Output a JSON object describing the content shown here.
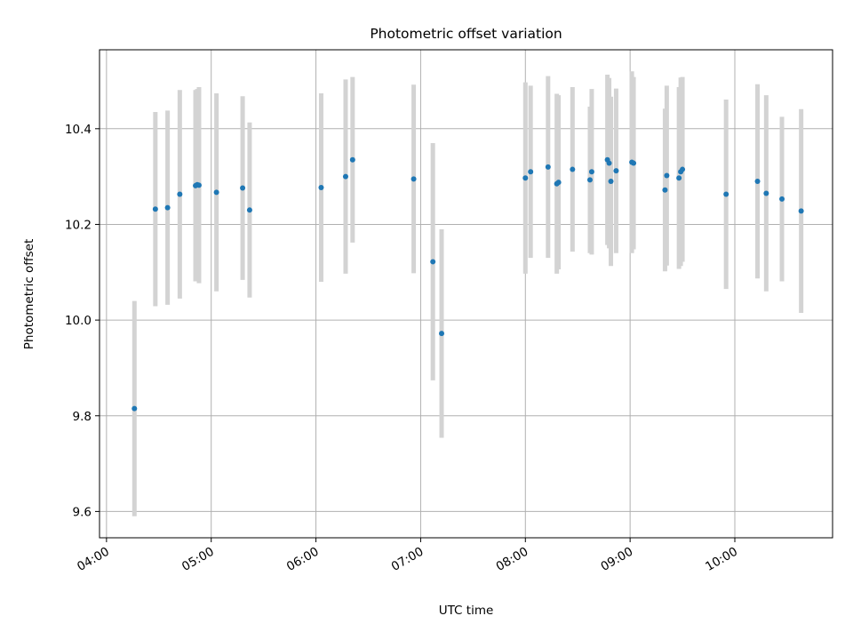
{
  "chart_data": {
    "type": "scatter",
    "title": "Photometric offset variation",
    "xlabel": "UTC time",
    "ylabel": "Photometric offset",
    "x_unit": "UTC time (HH:MM)",
    "xlim": [
      "03:56",
      "10:56"
    ],
    "ylim": [
      9.545,
      10.565
    ],
    "x_ticks": [
      "04:00",
      "05:00",
      "06:00",
      "07:00",
      "08:00",
      "09:00",
      "10:00"
    ],
    "y_ticks": [
      9.6,
      9.8,
      10.0,
      10.2,
      10.4
    ],
    "y_tick_labels": [
      "9.6",
      "9.8",
      "10.0",
      "10.2",
      "10.4"
    ],
    "grid": true,
    "point_color": "#1f77b4",
    "errorbar_color": "#d3d3d3",
    "series": [
      {
        "points": [
          {
            "x": "04:16",
            "y": 9.815,
            "yerr": 0.225
          },
          {
            "x": "04:28",
            "y": 10.232,
            "yerr": 0.203
          },
          {
            "x": "04:35",
            "y": 10.235,
            "yerr": 0.203
          },
          {
            "x": "04:42",
            "y": 10.263,
            "yerr": 0.218
          },
          {
            "x": "04:51",
            "y": 10.281,
            "yerr": 0.2
          },
          {
            "x": "04:52",
            "y": 10.283,
            "yerr": 0.2
          },
          {
            "x": "04:53",
            "y": 10.282,
            "yerr": 0.205
          },
          {
            "x": "05:03",
            "y": 10.267,
            "yerr": 0.207
          },
          {
            "x": "05:18",
            "y": 10.276,
            "yerr": 0.192
          },
          {
            "x": "05:22",
            "y": 10.23,
            "yerr": 0.183
          },
          {
            "x": "06:03",
            "y": 10.277,
            "yerr": 0.197
          },
          {
            "x": "06:17",
            "y": 10.3,
            "yerr": 0.203
          },
          {
            "x": "06:21",
            "y": 10.335,
            "yerr": 0.173
          },
          {
            "x": "06:56",
            "y": 10.295,
            "yerr": 0.197
          },
          {
            "x": "07:07",
            "y": 10.122,
            "yerr": 0.248
          },
          {
            "x": "07:12",
            "y": 9.972,
            "yerr": 0.218
          },
          {
            "x": "08:00",
            "y": 10.297,
            "yerr": 0.2
          },
          {
            "x": "08:03",
            "y": 10.31,
            "yerr": 0.18
          },
          {
            "x": "08:13",
            "y": 10.32,
            "yerr": 0.19
          },
          {
            "x": "08:18",
            "y": 10.285,
            "yerr": 0.188
          },
          {
            "x": "08:19",
            "y": 10.288,
            "yerr": 0.182
          },
          {
            "x": "08:27",
            "y": 10.315,
            "yerr": 0.172
          },
          {
            "x": "08:37",
            "y": 10.293,
            "yerr": 0.153
          },
          {
            "x": "08:38",
            "y": 10.31,
            "yerr": 0.173
          },
          {
            "x": "08:47",
            "y": 10.335,
            "yerr": 0.178
          },
          {
            "x": "08:48",
            "y": 10.328,
            "yerr": 0.178
          },
          {
            "x": "08:49",
            "y": 10.29,
            "yerr": 0.177
          },
          {
            "x": "08:52",
            "y": 10.312,
            "yerr": 0.172
          },
          {
            "x": "09:01",
            "y": 10.33,
            "yerr": 0.19
          },
          {
            "x": "09:02",
            "y": 10.328,
            "yerr": 0.18
          },
          {
            "x": "09:20",
            "y": 10.272,
            "yerr": 0.17
          },
          {
            "x": "09:21",
            "y": 10.302,
            "yerr": 0.188
          },
          {
            "x": "09:28",
            "y": 10.297,
            "yerr": 0.19
          },
          {
            "x": "09:29",
            "y": 10.31,
            "yerr": 0.197
          },
          {
            "x": "09:30",
            "y": 10.315,
            "yerr": 0.193
          },
          {
            "x": "09:55",
            "y": 10.263,
            "yerr": 0.198
          },
          {
            "x": "10:13",
            "y": 10.29,
            "yerr": 0.203
          },
          {
            "x": "10:18",
            "y": 10.265,
            "yerr": 0.205
          },
          {
            "x": "10:27",
            "y": 10.253,
            "yerr": 0.172
          },
          {
            "x": "10:38",
            "y": 10.228,
            "yerr": 0.213
          }
        ]
      }
    ]
  }
}
